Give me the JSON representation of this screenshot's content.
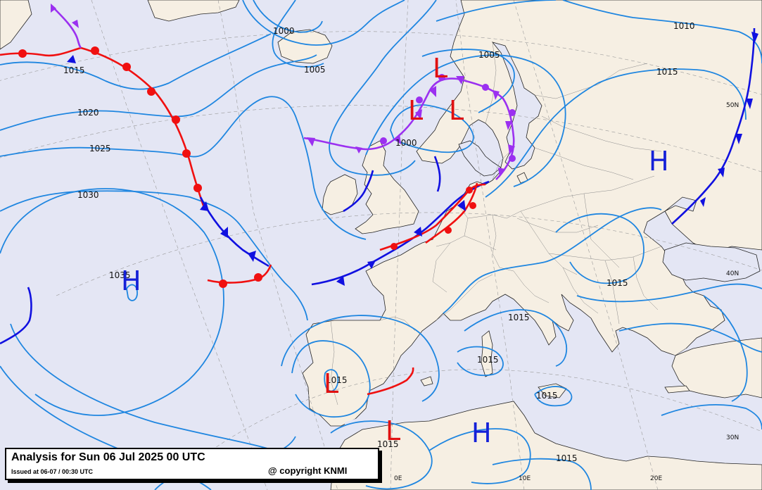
{
  "title": {
    "main": "Analysis for Sun 06 Jul 2025 00 UTC",
    "issued": "Issued at 06-07 / 00:30 UTC",
    "copyright": "@ copyright KNMI"
  },
  "colors": {
    "sea": "#e4e6f4",
    "land": "#f6efe3",
    "isobar": "#1f86e0",
    "high_center": "#1420d8",
    "low_center": "#e01010",
    "cold_front": "#1010e0",
    "warm_front": "#f01010",
    "occluded_front": "#9b30f0"
  },
  "isobar_labels": {
    "l1015_nw": "1015",
    "l1020": "1020",
    "l1025": "1025",
    "l1030": "1030",
    "l1035": "1035",
    "l1000_iceland": "1000",
    "l1005_iceland": "1005",
    "l1005_scand": "1005",
    "l1000_north_sea": "1000",
    "l1010_east": "1010",
    "l1015_east": "1015",
    "l1015_balkan": "1015",
    "l1015_italy": "1015",
    "l1015_corsica": "1015",
    "l1015_iberia": "1015",
    "l1015_greece": "1015",
    "l1015_algeria": "1015",
    "l1015_libya": "1015"
  },
  "pressure_centers": {
    "h_atlantic": "H",
    "h_russia": "H",
    "h_med": "H",
    "l_scand_n": "L",
    "l_scand_w": "L",
    "l_scand_e": "L",
    "l_iberia": "L",
    "l_algeria": "L"
  },
  "graticule_labels": {
    "lat50": "50N",
    "lat40": "40N",
    "lat30": "30N",
    "lon0": "0E",
    "lon10": "10E",
    "lon20": "20E"
  },
  "fronts": {
    "cold": "cold-front",
    "warm": "warm-front",
    "occluded": "occluded-front"
  }
}
